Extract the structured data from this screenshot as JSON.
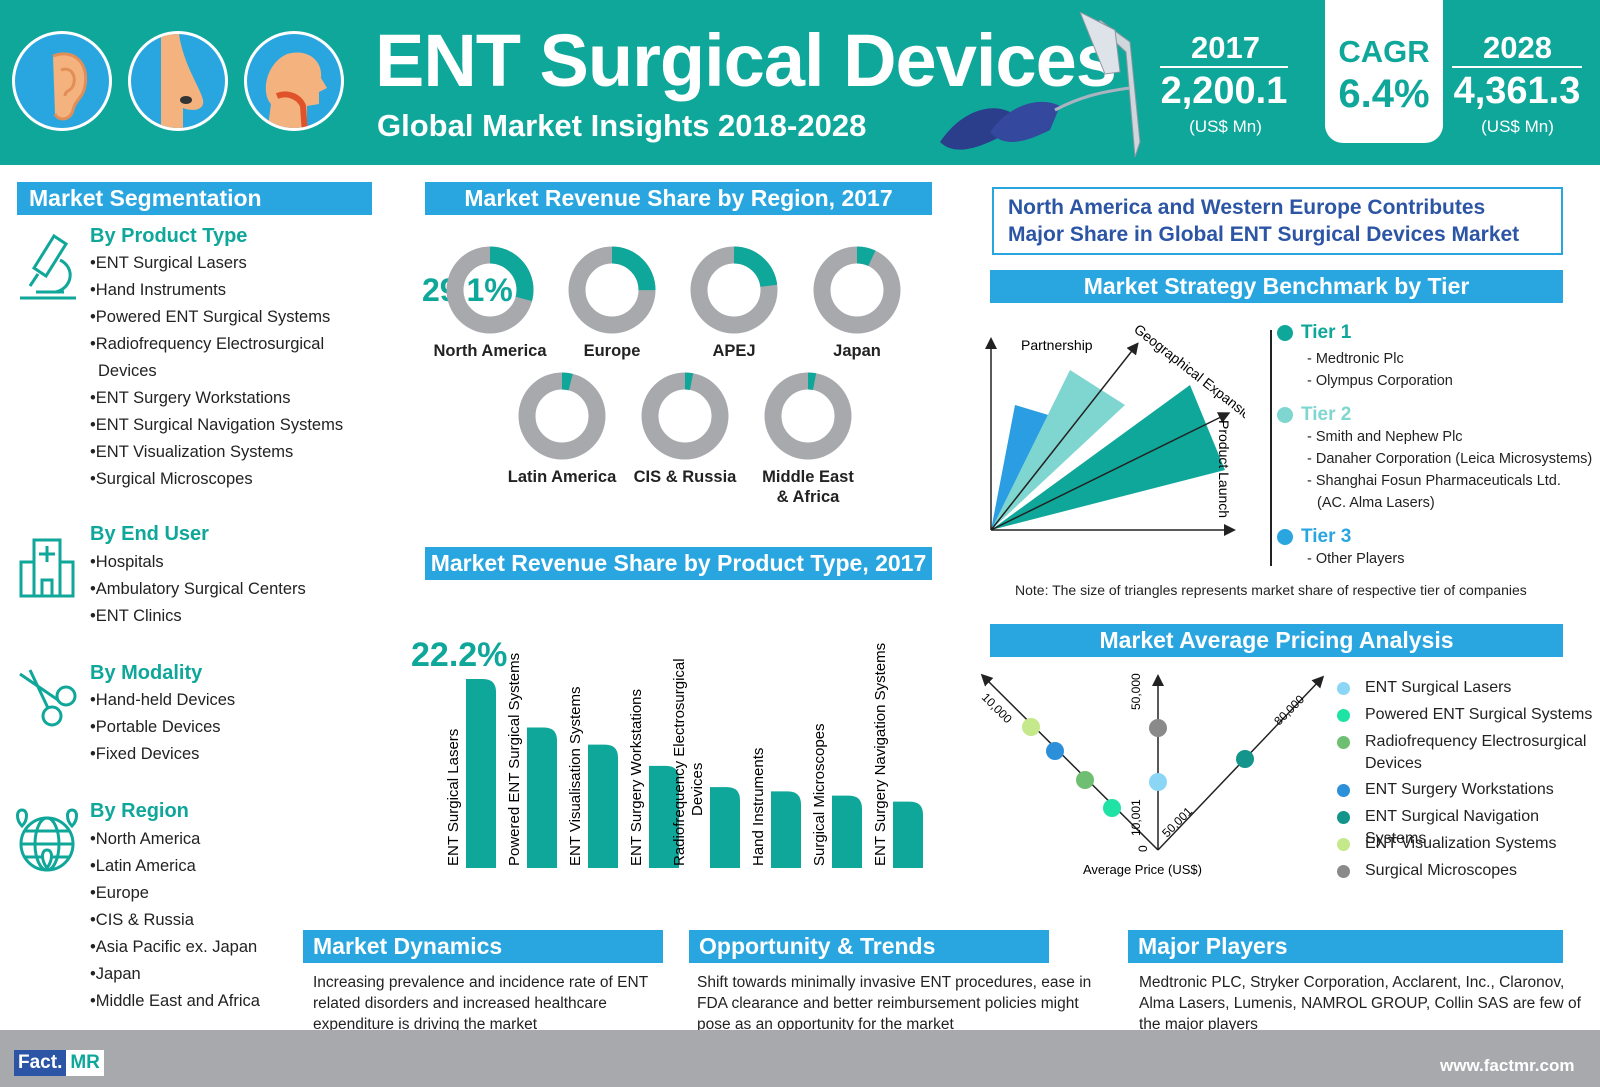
{
  "header": {
    "title": "ENT Surgical Devices",
    "subtitle": "Global Market Insights 2018-2028",
    "year_start": "2017",
    "value_start": "2,200.1",
    "unit_start": "(US$ Mn)",
    "cagr_label": "CAGR",
    "cagr_value": "6.4%",
    "year_end": "2028",
    "value_end": "4,361.3",
    "unit_end": "(US$ Mn)",
    "icons": [
      "ear-icon",
      "nose-icon",
      "throat-icon",
      "nasal-speculum-icon",
      "surgical-handpiece-icon"
    ]
  },
  "segmentation": {
    "title": "Market Segmentation",
    "product_type": {
      "heading": "By Product Type",
      "items": [
        "ENT Surgical Lasers",
        "Hand Instruments",
        "Powered ENT Surgical Systems",
        "Radiofrequency Electrosurgical",
        "Devices",
        "ENT Surgery Workstations",
        "ENT Surgical Navigation Systems",
        "ENT Visualization Systems",
        "Surgical Microscopes"
      ]
    },
    "end_user": {
      "heading": "By End User",
      "items": [
        "Hospitals",
        "Ambulatory Surgical Centers",
        "ENT Clinics"
      ]
    },
    "modality": {
      "heading": "By Modality",
      "items": [
        "Hand-held Devices",
        "Portable Devices",
        "Fixed Devices"
      ]
    },
    "region": {
      "heading": "By Region",
      "items": [
        "North America",
        "Latin America",
        "Europe",
        "CIS & Russia",
        "Asia Pacific ex. Japan",
        "Japan",
        "Middle East and Africa"
      ]
    }
  },
  "region_share": {
    "title": "Market Revenue Share by Region, 2017",
    "highlight": "29.1%",
    "regions": [
      {
        "name": "North America",
        "share": 29.1
      },
      {
        "name": "Europe",
        "share": 25
      },
      {
        "name": "APEJ",
        "share": 23
      },
      {
        "name": "Japan",
        "share": 7
      },
      {
        "name": "Latin America",
        "share": 4
      },
      {
        "name": "CIS & Russia",
        "share": 3
      },
      {
        "name": "Middle East",
        "name2": "& Africa",
        "share": 3
      }
    ]
  },
  "product_share": {
    "title": "Market Revenue Share by Product Type, 2017",
    "highlight": "22.2%"
  },
  "chart_data": {
    "type": "bar",
    "categories": [
      "ENT Surgical Lasers",
      "Powered ENT Surgical Systems",
      "ENT Visualisation Systems",
      "ENT Surgery Workstations",
      "Radiofrequency Electrosurgical Devices",
      "Hand Instruments",
      "Surgical Microscopes",
      "ENT Surgery Navigation Systems"
    ],
    "values": [
      22.2,
      16.5,
      14.5,
      12.0,
      9.5,
      9.0,
      8.5,
      7.8
    ],
    "title": "Market Revenue Share by Product Type, 2017",
    "ylim": [
      0,
      25
    ]
  },
  "insight": {
    "text": "North America and Western Europe Contributes Major Share in Global ENT Surgical Devices Market"
  },
  "benchmark": {
    "title": "Market Strategy Benchmark by Tier",
    "axis_partnership": "Partnership",
    "axis_geo": "Geographical Expansion",
    "axis_launch": "Product Launch",
    "tiers": [
      {
        "name": "Tier 1",
        "color": "#0fa79a",
        "players": [
          "- Medtronic Plc",
          "- Olympus Corporation"
        ]
      },
      {
        "name": "Tier 2",
        "color": "#7fd6d0",
        "players": [
          "- Smith and Nephew Plc",
          "- Danaher Corporation (Leica Microsystems)",
          "- Shanghai Fosun Pharmaceuticals Ltd.",
          "(AC. Alma Lasers)"
        ]
      },
      {
        "name": "Tier 3",
        "color": "#29a6df",
        "players": [
          "- Other Players"
        ]
      }
    ],
    "note": "Note: The size of triangles represents market share of respective tier of companies"
  },
  "pricing": {
    "title": "Market Average Pricing Analysis",
    "axis_left": "10,000",
    "axis_mid_top": "50,000",
    "axis_mid_bottom": "10,001",
    "axis_right_top": "80,000",
    "axis_right_bottom": "50,001",
    "origin": "0",
    "xlabel": "Average Price (US$)",
    "legend": [
      {
        "label": "ENT Surgical Lasers",
        "color": "#8bd6f5"
      },
      {
        "label": "Powered ENT Surgical Systems",
        "color": "#1ee3a4"
      },
      {
        "label": "Radiofrequency Electrosurgical",
        "label2": "Devices",
        "color": "#6fbf73"
      },
      {
        "label": "ENT Surgery Workstations",
        "color": "#2b8fd9"
      },
      {
        "label": "ENT Surgical Navigation Systems",
        "color": "#14958c"
      },
      {
        "label": "ENT Visualization Systems",
        "color": "#c4e88a"
      },
      {
        "label": "Surgical Microscopes",
        "color": "#8a8a8a"
      }
    ]
  },
  "dynamics": {
    "title": "Market Dynamics",
    "text": "Increasing prevalence and incidence rate of ENT related disorders and increased healthcare expenditure is driving the market"
  },
  "opportunity": {
    "title": "Opportunity & Trends",
    "text": "Shift towards minimally invasive ENT procedures, ease in FDA clearance and better reimbursement policies might pose as an opportunity for the market"
  },
  "players": {
    "title": "Major Players",
    "text": "Medtronic PLC, Stryker Corporation, Acclarent, Inc., Claronov, Alma Lasers, Lumenis, NAMROL GROUP, Collin SAS are few of the major players"
  },
  "footer": {
    "logo_a": "Fact.",
    "logo_b": "MR",
    "url": "www.factmr.com"
  }
}
